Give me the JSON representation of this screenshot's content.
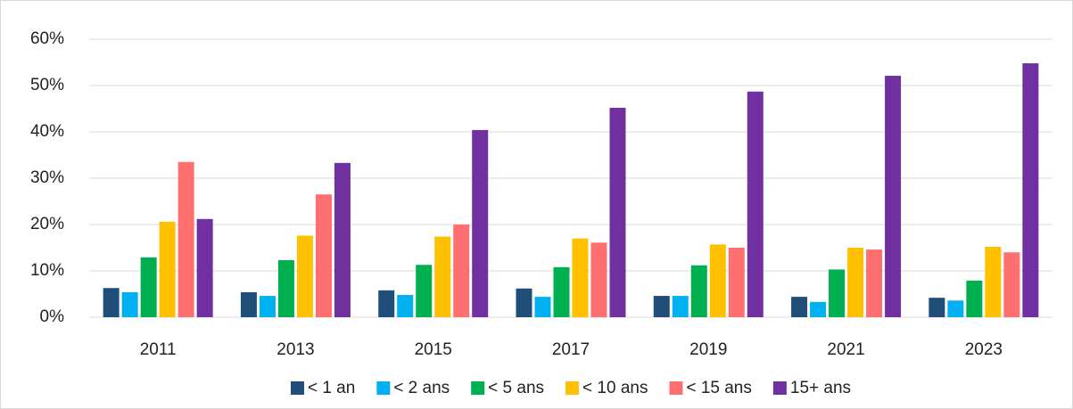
{
  "chart_data": {
    "type": "bar",
    "categories": [
      "2011",
      "2013",
      "2015",
      "2017",
      "2019",
      "2021",
      "2023"
    ],
    "series": [
      {
        "name": "< 1 an",
        "color": "#1f4e79",
        "values": [
          6.3,
          5.4,
          5.8,
          6.2,
          4.6,
          4.4,
          4.2
        ]
      },
      {
        "name": "< 2 ans",
        "color": "#00b0f0",
        "values": [
          5.4,
          4.6,
          4.8,
          4.4,
          4.6,
          3.3,
          3.6
        ]
      },
      {
        "name": "< 5 ans",
        "color": "#00b050",
        "values": [
          12.9,
          12.3,
          11.3,
          10.8,
          11.2,
          10.3,
          7.9
        ]
      },
      {
        "name": "< 10 ans",
        "color": "#ffc000",
        "values": [
          20.6,
          17.6,
          17.4,
          17.0,
          15.7,
          15.0,
          15.2
        ]
      },
      {
        "name": "< 15 ans",
        "color": "#ff6f6f",
        "values": [
          33.5,
          26.5,
          20.0,
          16.1,
          15.0,
          14.6,
          14.0
        ]
      },
      {
        "name": "15+ ans",
        "color": "#7030a0",
        "values": [
          21.2,
          33.3,
          40.4,
          45.2,
          48.7,
          52.1,
          54.8
        ]
      }
    ],
    "ylim": [
      0,
      60
    ],
    "yticks": [
      {
        "value": 0,
        "label": "0%"
      },
      {
        "value": 10,
        "label": "10%"
      },
      {
        "value": 20,
        "label": "20%"
      },
      {
        "value": 30,
        "label": "30%"
      },
      {
        "value": 40,
        "label": "40%"
      },
      {
        "value": 50,
        "label": "50%"
      },
      {
        "value": 60,
        "label": "60%"
      }
    ],
    "grid": true,
    "legend": "bottom"
  }
}
